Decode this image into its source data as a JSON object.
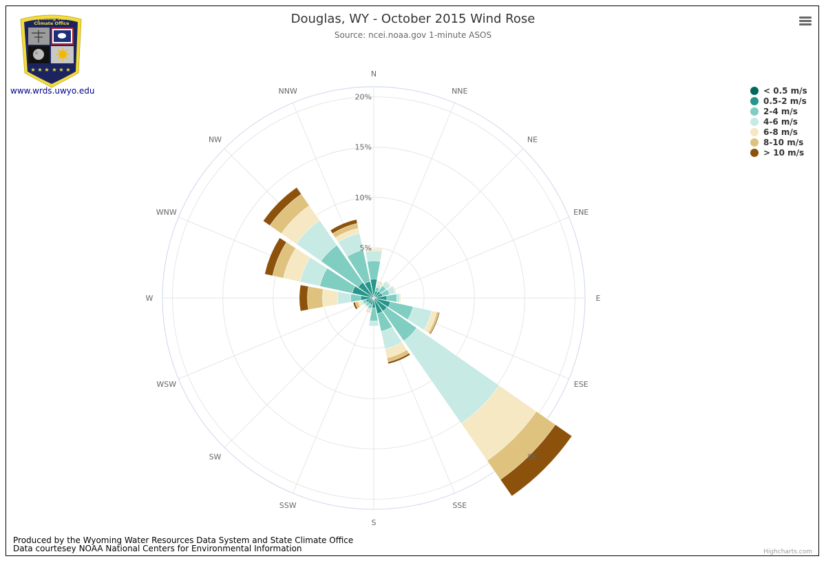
{
  "chart_data": {
    "type": "windrose",
    "title": "Douglas, WY - October 2015 Wind Rose",
    "subtitle": "Source: ncei.noaa.gov 1-minute ASOS",
    "directions": [
      "N",
      "NNE",
      "NE",
      "ENE",
      "E",
      "ESE",
      "SE",
      "SSE",
      "S",
      "SSW",
      "SW",
      "WSW",
      "W",
      "WNW",
      "NW",
      "NNW"
    ],
    "ylim": [
      0,
      21
    ],
    "yticks": [
      5,
      10,
      15,
      20
    ],
    "ytick_labels": [
      "5%",
      "10%",
      "15%",
      "20%"
    ],
    "stacking": "normal",
    "series": [
      {
        "name": "< 0.5 m/s",
        "color": "#00695c",
        "values": [
          0.3,
          0.2,
          0.2,
          0.2,
          0.3,
          0.3,
          0.4,
          0.3,
          0.2,
          0.2,
          0.2,
          0.2,
          0.3,
          0.3,
          0.3,
          0.3
        ]
      },
      {
        "name": "0.5-2 m/s",
        "color": "#26968a",
        "values": [
          1.6,
          0.5,
          0.6,
          0.7,
          1.0,
          1.4,
          1.2,
          1.3,
          0.8,
          0.5,
          0.5,
          0.6,
          1.0,
          1.9,
          1.6,
          1.4
        ]
      },
      {
        "name": "2-4 m/s",
        "color": "#80cdc1",
        "values": [
          1.8,
          0.4,
          0.7,
          0.7,
          1.0,
          2.3,
          3.6,
          1.8,
          1.3,
          0.4,
          0.3,
          0.3,
          1.0,
          3.3,
          4.5,
          3.2
        ]
      },
      {
        "name": "4-6 m/s",
        "color": "#c7eae5",
        "values": [
          1.0,
          0.3,
          0.5,
          0.6,
          0.3,
          1.9,
          10.0,
          1.8,
          0.5,
          0.2,
          0.1,
          0.2,
          1.3,
          2.0,
          3.0,
          1.7
        ]
      },
      {
        "name": "6-8 m/s",
        "color": "#f6e8c3",
        "values": [
          0.2,
          0.2,
          0.1,
          0.1,
          0.1,
          0.5,
          4.5,
          0.9,
          0,
          0.1,
          0.1,
          0.3,
          1.5,
          1.7,
          1.8,
          0.5
        ]
      },
      {
        "name": "8-10 m/s",
        "color": "#dfc27d",
        "values": [
          0.05,
          0.1,
          0,
          0,
          0,
          0.2,
          2.3,
          0.4,
          0,
          0.1,
          0,
          0.3,
          1.5,
          1.1,
          1.4,
          0.5
        ]
      },
      {
        "name": "> 10 m/s",
        "color": "#8c510a",
        "values": [
          0,
          0,
          0,
          0,
          0,
          0.1,
          2.0,
          0.2,
          0,
          0,
          0,
          0.2,
          0.8,
          0.8,
          0.8,
          0.4
        ]
      }
    ]
  },
  "logo": {
    "name_line1": "Wyoming State",
    "name_line2": "Climate Office",
    "colors": {
      "navy": "#1c2460",
      "gold": "#f2dc3e"
    }
  },
  "website": "www.wrds.uwyo.edu",
  "footer": {
    "line1": "Produced by the Wyoming Water Resources Data System and State Climate Office",
    "line2": "Data courtesey NOAA National Centers for Environmental Information"
  },
  "credit": "Highcharts.com",
  "menu_icon": "hamburger-menu-icon"
}
